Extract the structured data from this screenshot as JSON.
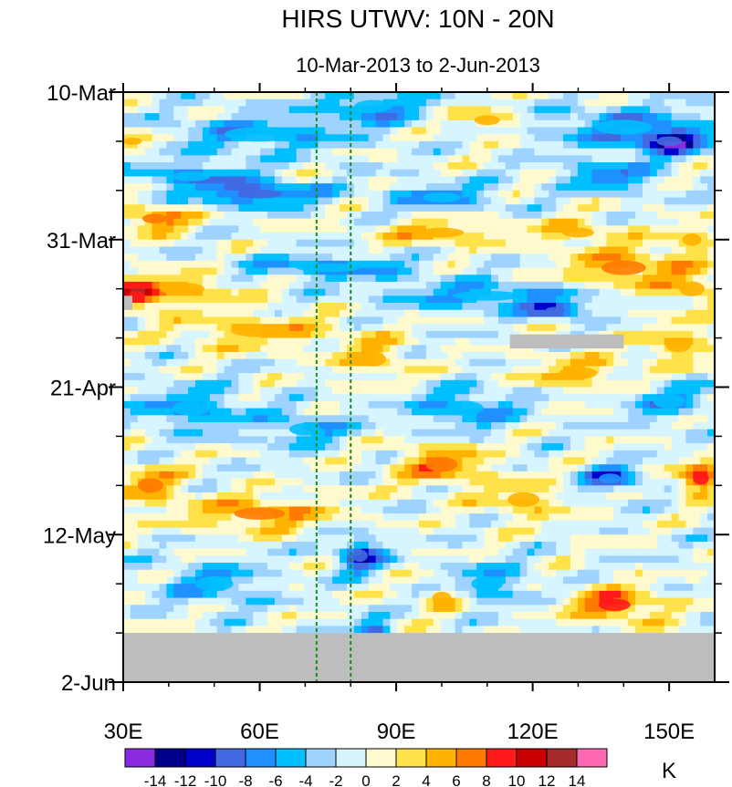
{
  "chart_data": {
    "type": "heatmap",
    "title": "HIRS UTWV: 10N - 20N",
    "subtitle": "10-Mar-2013 to 2-Jun-2013",
    "x_axis": {
      "range": [
        30,
        160
      ],
      "ticks": [
        30,
        60,
        90,
        120,
        150
      ],
      "tick_labels": [
        "30E",
        "60E",
        "90E",
        "120E",
        "150E"
      ]
    },
    "y_axis": {
      "range_days": [
        0,
        84
      ],
      "ticks_days": [
        0,
        21,
        42,
        63,
        84
      ],
      "tick_labels": [
        "10-Mar",
        "31-Mar",
        "21-Apr",
        "12-May",
        "2-Jun"
      ]
    },
    "reference_lines_longitude": [
      72.5,
      80
    ],
    "missing_regions": [
      {
        "lon": [
          30,
          160
        ],
        "day": [
          77,
          84
        ]
      },
      {
        "lon": [
          115,
          140
        ],
        "day": [
          34.5,
          36.5
        ]
      },
      {
        "lon": [
          30,
          32
        ],
        "day": [
          29,
          31
        ]
      }
    ],
    "colorbar": {
      "unit": "K",
      "levels": [
        -14,
        -12,
        -10,
        -8,
        -6,
        -4,
        -2,
        0,
        2,
        4,
        6,
        8,
        10,
        12,
        14
      ],
      "tick_labels": [
        "-14",
        "-12",
        "-10",
        "-8",
        "-6",
        "-4",
        "-2",
        "0",
        "2",
        "4",
        "6",
        "8",
        "10",
        "12",
        "14"
      ],
      "colors": [
        "#8a2be2",
        "#00008b",
        "#0000cd",
        "#4169e1",
        "#1e90ff",
        "#00bfff",
        "#9fd3ff",
        "#d6f5ff",
        "#fffacd",
        "#ffe14a",
        "#ffb300",
        "#ff7a00",
        "#ff1a1a",
        "#cc0000",
        "#a52a2a",
        "#ff69b4"
      ]
    },
    "features": [
      {
        "lon": 60,
        "day": 6,
        "value": -5,
        "rx": 22,
        "ry": 3
      },
      {
        "lon": 85,
        "day": 2,
        "value": -6,
        "rx": 12,
        "ry": 2.5
      },
      {
        "lon": 150,
        "day": 7,
        "value": -10,
        "rx": 8,
        "ry": 2
      },
      {
        "lon": 140,
        "day": 5,
        "value": -6,
        "rx": 18,
        "ry": 3
      },
      {
        "lon": 32,
        "day": 7,
        "value": 5,
        "rx": 6,
        "ry": 1.5
      },
      {
        "lon": 110,
        "day": 4,
        "value": 4,
        "rx": 8,
        "ry": 2
      },
      {
        "lon": 45,
        "day": 12,
        "value": -6,
        "rx": 12,
        "ry": 2
      },
      {
        "lon": 60,
        "day": 14.5,
        "value": -9,
        "rx": 14,
        "ry": 1.8
      },
      {
        "lon": 100,
        "day": 15,
        "value": -6,
        "rx": 12,
        "ry": 2
      },
      {
        "lon": 137,
        "day": 12,
        "value": -7,
        "rx": 10,
        "ry": 2
      },
      {
        "lon": 37,
        "day": 18,
        "value": 7,
        "rx": 8,
        "ry": 2
      },
      {
        "lon": 100,
        "day": 20,
        "value": 5,
        "rx": 14,
        "ry": 2
      },
      {
        "lon": 130,
        "day": 20,
        "value": 4,
        "rx": 10,
        "ry": 2
      },
      {
        "lon": 155,
        "day": 21,
        "value": 4,
        "rx": 6,
        "ry": 2.5
      },
      {
        "lon": 33,
        "day": 29,
        "value": 9,
        "rx": 5,
        "ry": 2
      },
      {
        "lon": 43,
        "day": 28,
        "value": 5,
        "rx": 14,
        "ry": 2.5
      },
      {
        "lon": 75,
        "day": 25,
        "value": -6,
        "rx": 20,
        "ry": 1.8
      },
      {
        "lon": 110,
        "day": 29,
        "value": -6,
        "rx": 22,
        "ry": 2
      },
      {
        "lon": 125,
        "day": 31,
        "value": -10,
        "rx": 6,
        "ry": 1.2
      },
      {
        "lon": 140,
        "day": 25,
        "value": 6,
        "rx": 14,
        "ry": 3
      },
      {
        "lon": 155,
        "day": 28,
        "value": 4,
        "rx": 8,
        "ry": 3
      },
      {
        "lon": 60,
        "day": 34,
        "value": 5,
        "rx": 18,
        "ry": 2.5
      },
      {
        "lon": 85,
        "day": 38,
        "value": 5,
        "rx": 8,
        "ry": 3
      },
      {
        "lon": 130,
        "day": 40,
        "value": 5,
        "rx": 12,
        "ry": 2.5
      },
      {
        "lon": 152,
        "day": 36,
        "value": 5,
        "rx": 8,
        "ry": 3
      },
      {
        "lon": 45,
        "day": 45,
        "value": -6,
        "rx": 12,
        "ry": 3
      },
      {
        "lon": 70,
        "day": 48,
        "value": -5,
        "rx": 10,
        "ry": 2.5
      },
      {
        "lon": 105,
        "day": 45,
        "value": -6,
        "rx": 12,
        "ry": 3
      },
      {
        "lon": 150,
        "day": 44,
        "value": -5,
        "rx": 10,
        "ry": 3
      },
      {
        "lon": 36,
        "day": 56,
        "value": 6,
        "rx": 8,
        "ry": 3
      },
      {
        "lon": 60,
        "day": 60,
        "value": 6,
        "rx": 16,
        "ry": 2.5
      },
      {
        "lon": 100,
        "day": 53,
        "value": 7,
        "rx": 10,
        "ry": 3
      },
      {
        "lon": 118,
        "day": 58,
        "value": 4,
        "rx": 10,
        "ry": 3
      },
      {
        "lon": 137,
        "day": 55,
        "value": -8,
        "rx": 7,
        "ry": 2
      },
      {
        "lon": 157,
        "day": 55,
        "value": 9,
        "rx": 5,
        "ry": 2.5
      },
      {
        "lon": 82,
        "day": 66,
        "value": -10,
        "rx": 5,
        "ry": 2.5
      },
      {
        "lon": 50,
        "day": 70,
        "value": -5,
        "rx": 12,
        "ry": 3
      },
      {
        "lon": 110,
        "day": 70,
        "value": -5,
        "rx": 10,
        "ry": 3
      },
      {
        "lon": 138,
        "day": 73,
        "value": 8,
        "rx": 10,
        "ry": 2.5
      },
      {
        "lon": 100,
        "day": 72,
        "value": 4,
        "rx": 6,
        "ry": 2.5
      },
      {
        "lon": 85,
        "day": 77,
        "value": -9,
        "rx": 4,
        "ry": 2
      }
    ]
  }
}
